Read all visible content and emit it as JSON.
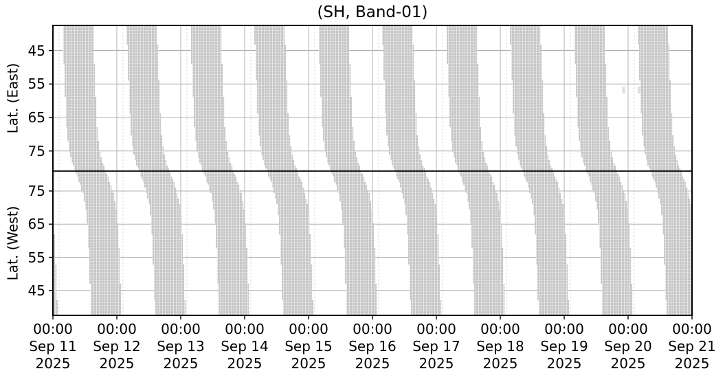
{
  "chart_data": {
    "type": "area",
    "chart_kind": "satellite-coverage-swath-timeline",
    "title": "(SH, Band-01)",
    "x_axis": {
      "grid": true,
      "span_days": 10,
      "ticks": [
        {
          "time": "00:00",
          "date": "Sep 11",
          "year": "2025"
        },
        {
          "time": "00:00",
          "date": "Sep 12",
          "year": "2025"
        },
        {
          "time": "00:00",
          "date": "Sep 13",
          "year": "2025"
        },
        {
          "time": "00:00",
          "date": "Sep 14",
          "year": "2025"
        },
        {
          "time": "00:00",
          "date": "Sep 15",
          "year": "2025"
        },
        {
          "time": "00:00",
          "date": "Sep 16",
          "year": "2025"
        },
        {
          "time": "00:00",
          "date": "Sep 17",
          "year": "2025"
        },
        {
          "time": "00:00",
          "date": "Sep 18",
          "year": "2025"
        },
        {
          "time": "00:00",
          "date": "Sep 19",
          "year": "2025"
        },
        {
          "time": "00:00",
          "date": "Sep 20",
          "year": "2025"
        },
        {
          "time": "00:00",
          "date": "Sep 21",
          "year": "2025"
        }
      ]
    },
    "y_axis_top": {
      "label": "Lat. (East)",
      "ticks": [
        45,
        55,
        65,
        75
      ],
      "range": [
        37.5,
        81
      ],
      "direction": "increasing-downward"
    },
    "y_axis_bottom": {
      "label": "Lat. (West)",
      "ticks": [
        75,
        65,
        55,
        45
      ],
      "range": [
        81,
        37.5
      ],
      "direction": "decreasing-downward"
    },
    "divider_latitude": 81,
    "bands": {
      "count": 11,
      "start_day_index_first": -1,
      "start_days": [
        "Sep 10",
        "Sep 11",
        "Sep 12",
        "Sep 13",
        "Sep 14",
        "Sep 15",
        "Sep 16",
        "Sep 17",
        "Sep 18",
        "Sep 19",
        "Sep 20"
      ],
      "start_offset_hours": 3.6,
      "width_hours": 11.4,
      "drift_hours": 4.1,
      "midline_jump_hours": 6.7,
      "sigmoid_center": 0.52,
      "sigmoid_width": 0.045,
      "minor_line_offset_hours": 2.3
    },
    "blips": [
      {
        "day": 8.91,
        "lat_east": 56.8
      },
      {
        "day": 9.15,
        "lat_east": 56.8
      }
    ],
    "colors": {
      "band": "#c6c6c6",
      "band_hatch": "#ffffff",
      "grid_major": "#b0b0b0",
      "grid_minor": "#d0d0d0",
      "divider": "#000000",
      "frame": "#000000",
      "tick": "#000000",
      "text": "#000000",
      "background": "#ffffff",
      "blip": "#dedede"
    }
  }
}
